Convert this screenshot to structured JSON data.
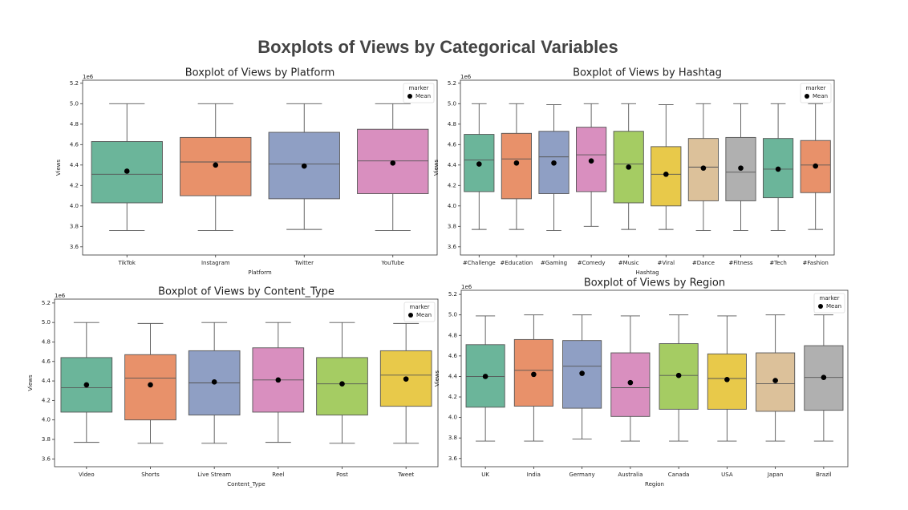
{
  "title": "Boxplots of Views by Categorical Variables",
  "chart_data": [
    {
      "type": "box",
      "title": "Boxplot of Views by Platform",
      "x_label": "Platform",
      "y_label": "Views",
      "y_offset_label": "1e6",
      "categories": [
        "TikTok",
        "Instagram",
        "Twitter",
        "YouTube"
      ],
      "colors": [
        "#6bb59a",
        "#e8916a",
        "#8f9fc4",
        "#d98fbf"
      ],
      "whishi": [
        5.0,
        5.0,
        5.0,
        5.0
      ],
      "q3": [
        4.63,
        4.67,
        4.72,
        4.75
      ],
      "median": [
        4.31,
        4.43,
        4.41,
        4.44
      ],
      "q1": [
        4.03,
        4.1,
        4.07,
        4.12
      ],
      "whislo": [
        3.76,
        3.76,
        3.77,
        3.76
      ],
      "mean": [
        4.34,
        4.4,
        4.39,
        4.42
      ],
      "mean_color": "#000000",
      "ylim": [
        3.52,
        5.23
      ],
      "yticks": [
        3.6,
        3.8,
        {
          "value": 4,
          "label": "4.0"
        },
        4.2,
        4.4,
        4.6,
        4.8,
        {
          "value": 5,
          "label": "5.0"
        },
        5.2
      ],
      "legend": {
        "title": "marker",
        "entries": [
          "Mean"
        ],
        "loc": "upper right"
      }
    },
    {
      "type": "box",
      "title": "Boxplot of Views by Hashtag",
      "x_label": "Hashtag",
      "y_label": "Views",
      "y_offset_label": "1e6",
      "categories": [
        "#Challenge",
        "#Education",
        "#Gaming",
        "#Comedy",
        "#Music",
        "#Viral",
        "#Dance",
        "#Fitness",
        "#Tech",
        "#Fashion"
      ],
      "colors": [
        "#6bb59a",
        "#e8916a",
        "#8f9fc4",
        "#d98fbf",
        "#a5cc63",
        "#e8c94a",
        "#dcc19a",
        "#b0b0b0",
        "#6bb59a",
        "#e8916a"
      ],
      "whishi": [
        5.0,
        5.0,
        4.99,
        5.0,
        5.0,
        4.99,
        5.0,
        5.0,
        5.0,
        5.0
      ],
      "q3": [
        4.7,
        4.71,
        4.73,
        4.77,
        4.73,
        4.58,
        4.66,
        4.67,
        4.66,
        4.64
      ],
      "median": [
        4.45,
        4.46,
        4.48,
        4.5,
        4.41,
        4.31,
        4.38,
        4.33,
        4.36,
        4.4
      ],
      "q1": [
        4.14,
        4.07,
        4.12,
        4.14,
        4.03,
        4.0,
        4.05,
        4.05,
        4.08,
        4.13
      ],
      "whislo": [
        3.77,
        3.77,
        3.76,
        3.8,
        3.77,
        3.77,
        3.76,
        3.76,
        3.76,
        3.77
      ],
      "mean": [
        4.41,
        4.42,
        4.42,
        4.44,
        4.38,
        4.31,
        4.37,
        4.37,
        4.36,
        4.39
      ],
      "mean_color": "#000000",
      "ylim": [
        3.52,
        5.23
      ],
      "yticks": [
        3.6,
        3.8,
        {
          "value": 4,
          "label": "4.0"
        },
        4.2,
        4.4,
        4.6,
        4.8,
        {
          "value": 5,
          "label": "5.0"
        },
        5.2
      ],
      "legend": {
        "title": "marker",
        "entries": [
          "Mean"
        ],
        "loc": "upper right"
      }
    },
    {
      "type": "box",
      "title": "Boxplot of Views by Content_Type",
      "x_label": "Content_Type",
      "y_label": "Views",
      "y_offset_label": "1e6",
      "categories": [
        "Video",
        "Shorts",
        "Live Stream",
        "Reel",
        "Post",
        "Tweet"
      ],
      "colors": [
        "#6bb59a",
        "#e8916a",
        "#8f9fc4",
        "#d98fbf",
        "#a5cc63",
        "#e8c94a"
      ],
      "whishi": [
        5.0,
        4.99,
        5.0,
        5.0,
        5.0,
        4.99
      ],
      "q3": [
        4.64,
        4.67,
        4.71,
        4.74,
        4.64,
        4.71
      ],
      "median": [
        4.33,
        4.43,
        4.38,
        4.41,
        4.37,
        4.46
      ],
      "q1": [
        4.08,
        4.0,
        4.05,
        4.08,
        4.05,
        4.14
      ],
      "whislo": [
        3.77,
        3.76,
        3.76,
        3.77,
        3.76,
        3.76
      ],
      "mean": [
        4.36,
        4.36,
        4.39,
        4.41,
        4.37,
        4.42
      ],
      "mean_color": "#000000",
      "ylim": [
        3.52,
        5.24
      ],
      "yticks": [
        3.6,
        3.8,
        {
          "value": 4,
          "label": "4.0"
        },
        4.2,
        4.4,
        4.6,
        4.8,
        {
          "value": 5,
          "label": "5.0"
        },
        5.2
      ],
      "legend": {
        "title": "marker",
        "entries": [
          "Mean"
        ],
        "loc": "upper right"
      }
    },
    {
      "type": "box",
      "title": "Boxplot of Views by Region",
      "x_label": "Region",
      "y_label": "Views",
      "y_offset_label": "1e6",
      "categories": [
        "UK",
        "India",
        "Germany",
        "Australia",
        "Canada",
        "USA",
        "Japan",
        "Brazil"
      ],
      "colors": [
        "#6bb59a",
        "#e8916a",
        "#8f9fc4",
        "#d98fbf",
        "#a5cc63",
        "#e8c94a",
        "#dcc19a",
        "#b0b0b0"
      ],
      "whishi": [
        4.99,
        5.0,
        5.0,
        4.99,
        5.0,
        4.99,
        5.0,
        5.0
      ],
      "q3": [
        4.71,
        4.76,
        4.75,
        4.63,
        4.72,
        4.62,
        4.63,
        4.7
      ],
      "median": [
        4.4,
        4.46,
        4.5,
        4.29,
        4.41,
        4.38,
        4.33,
        4.39
      ],
      "q1": [
        4.1,
        4.11,
        4.09,
        4.01,
        4.08,
        4.08,
        4.06,
        4.07
      ],
      "whislo": [
        3.77,
        3.77,
        3.79,
        3.77,
        3.77,
        3.77,
        3.77,
        3.77
      ],
      "mean": [
        4.4,
        4.42,
        4.43,
        4.34,
        4.41,
        4.37,
        4.36,
        4.39
      ],
      "mean_color": "#000000",
      "ylim": [
        3.52,
        5.24
      ],
      "yticks": [
        3.6,
        3.8,
        {
          "value": 4,
          "label": "4.0"
        },
        4.2,
        4.4,
        4.6,
        4.8,
        {
          "value": 5,
          "label": "5.0"
        },
        5.2
      ],
      "legend": {
        "title": "marker",
        "entries": [
          "Mean"
        ],
        "loc": "upper right"
      }
    }
  ]
}
